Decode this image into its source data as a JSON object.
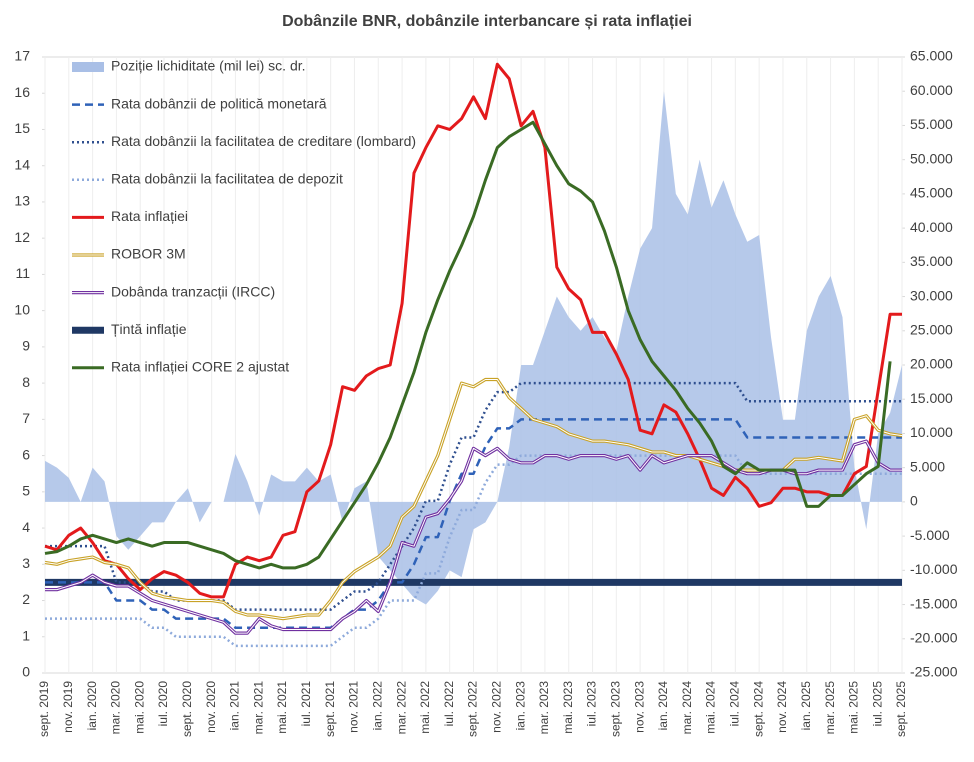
{
  "chart_data": {
    "type": "line",
    "title": "Dobânzile  BNR, dobânzile  interbancare  și rata inflației",
    "categories": [
      "sept. 2019",
      null,
      "nov. 2019",
      null,
      "ian. 2020",
      null,
      "mar. 2020",
      null,
      "mai. 2020",
      null,
      "iul. 2020",
      null,
      "sept. 2020",
      null,
      "nov. 2020",
      null,
      "ian. 2021",
      null,
      "mar. 2021",
      null,
      "mai. 2021",
      null,
      "iul. 2021",
      null,
      "sept. 2021",
      null,
      "nov. 2021",
      null,
      "ian. 2022",
      null,
      "mar. 2022",
      null,
      "mai. 2022",
      null,
      "iul. 2022",
      null,
      "sept. 2022",
      null,
      "nov. 2022",
      null,
      "ian. 2023",
      null,
      "mar. 2023",
      null,
      "mai. 2023",
      null,
      "iul. 2023",
      null,
      "sept. 2023",
      null,
      "nov. 2023",
      null,
      "ian. 2024",
      null,
      "mar. 2024",
      null,
      "mai. 2024",
      null,
      "iul. 2024",
      null,
      "sept. 2024",
      null,
      "nov. 2024",
      null,
      "ian. 2025",
      null,
      "mar. 2025",
      null,
      "mai. 2025",
      null,
      "iul. 2025",
      null,
      "sept. 2025"
    ],
    "ylim": [
      0,
      17
    ],
    "yticks": [
      0,
      1,
      2,
      3,
      4,
      5,
      6,
      7,
      8,
      9,
      10,
      11,
      12,
      13,
      14,
      15,
      16,
      17
    ],
    "y2lim": [
      -25000,
      65000
    ],
    "y2ticks": [
      {
        "value": -25000,
        "label": "-25.000"
      },
      {
        "value": -20000,
        "label": "-20.000"
      },
      {
        "value": -15000,
        "label": "-15.000"
      },
      {
        "value": -10000,
        "label": "-10.000"
      },
      {
        "value": -5000,
        "label": "-5.000"
      },
      0,
      {
        "value": 5000,
        "label": "5.000"
      },
      {
        "value": 10000,
        "label": "10.000"
      },
      {
        "value": 15000,
        "label": "15.000"
      },
      {
        "value": 20000,
        "label": "20.000"
      },
      {
        "value": 25000,
        "label": "25.000"
      },
      {
        "value": 30000,
        "label": "30.000"
      },
      {
        "value": 35000,
        "label": "35.000"
      },
      {
        "value": 40000,
        "label": "40.000"
      },
      {
        "value": 45000,
        "label": "45.000"
      },
      {
        "value": 50000,
        "label": "50.000"
      },
      {
        "value": 55000,
        "label": "55.000"
      },
      {
        "value": 60000,
        "label": "60.000"
      },
      {
        "value": 65000,
        "label": "65.000"
      }
    ],
    "legend": "upper left",
    "series": [
      {
        "name": "Poziție lichiditate (mil lei) sc. dr.",
        "type": "area",
        "axis": "y2",
        "color": "#a9bfe6",
        "values": [
          6000,
          5000,
          3500,
          0,
          5000,
          3000,
          -5000,
          -7000,
          -5000,
          -3000,
          -3000,
          0,
          2000,
          -3000,
          0,
          0,
          7000,
          3000,
          -2000,
          4000,
          3000,
          3000,
          5000,
          3000,
          4000,
          -3000,
          2000,
          3000,
          -8000,
          -10000,
          -12000,
          -14000,
          -15000,
          -13000,
          -10000,
          -11000,
          -4000,
          -3000,
          0,
          8000,
          20000,
          20000,
          25000,
          30000,
          27000,
          25000,
          27000,
          24000,
          22000,
          30000,
          37000,
          40000,
          60000,
          45000,
          42000,
          50000,
          43000,
          47000,
          42000,
          38000,
          39000,
          24000,
          12000,
          12000,
          25000,
          30000,
          33000,
          27000,
          5000,
          -4000,
          10000,
          13000,
          20000
        ]
      },
      {
        "name": "Rata dobânzii de politică monetară",
        "type": "line",
        "style": "dashed",
        "color": "#2f62b8",
        "values": [
          2.5,
          2.5,
          2.5,
          2.5,
          2.5,
          2.5,
          2.0,
          2.0,
          2.0,
          1.75,
          1.75,
          1.5,
          1.5,
          1.5,
          1.5,
          1.5,
          1.25,
          1.25,
          1.25,
          1.25,
          1.25,
          1.25,
          1.25,
          1.25,
          1.25,
          1.5,
          1.75,
          1.75,
          2.0,
          2.5,
          2.5,
          3.0,
          3.75,
          3.75,
          4.75,
          5.5,
          5.5,
          6.25,
          6.75,
          6.75,
          7.0,
          7.0,
          7.0,
          7.0,
          7.0,
          7.0,
          7.0,
          7.0,
          7.0,
          7.0,
          7.0,
          7.0,
          7.0,
          7.0,
          7.0,
          7.0,
          7.0,
          7.0,
          7.0,
          6.5,
          6.5,
          6.5,
          6.5,
          6.5,
          6.5,
          6.5,
          6.5,
          6.5,
          6.5,
          6.5,
          6.5,
          6.5,
          6.5
        ]
      },
      {
        "name": "Rata dobânzii la facilitatea de creditare (lombard)",
        "type": "line",
        "style": "dotted",
        "color": "#2f4f8f",
        "values": [
          3.5,
          3.5,
          3.5,
          3.5,
          3.5,
          3.5,
          2.5,
          2.5,
          2.5,
          2.25,
          2.25,
          2.0,
          2.0,
          2.0,
          2.0,
          2.0,
          1.75,
          1.75,
          1.75,
          1.75,
          1.75,
          1.75,
          1.75,
          1.75,
          1.75,
          2.0,
          2.25,
          2.25,
          2.5,
          3.0,
          3.5,
          4.0,
          4.75,
          4.75,
          5.75,
          6.5,
          6.5,
          7.25,
          7.75,
          7.75,
          8.0,
          8.0,
          8.0,
          8.0,
          8.0,
          8.0,
          8.0,
          8.0,
          8.0,
          8.0,
          8.0,
          8.0,
          8.0,
          8.0,
          8.0,
          8.0,
          8.0,
          8.0,
          8.0,
          7.5,
          7.5,
          7.5,
          7.5,
          7.5,
          7.5,
          7.5,
          7.5,
          7.5,
          7.5,
          7.5,
          7.5,
          7.5,
          7.5
        ]
      },
      {
        "name": "Rata dobânzii la facilitatea de depozit",
        "type": "line",
        "style": "dotted",
        "color": "#8eaadb",
        "values": [
          1.5,
          1.5,
          1.5,
          1.5,
          1.5,
          1.5,
          1.5,
          1.5,
          1.5,
          1.25,
          1.25,
          1.0,
          1.0,
          1.0,
          1.0,
          1.0,
          0.75,
          0.75,
          0.75,
          0.75,
          0.75,
          0.75,
          0.75,
          0.75,
          0.75,
          1.0,
          1.25,
          1.25,
          1.5,
          2.0,
          2.0,
          2.0,
          2.75,
          2.75,
          3.75,
          4.5,
          4.5,
          5.25,
          5.75,
          5.75,
          6.0,
          6.0,
          6.0,
          6.0,
          6.0,
          6.0,
          6.0,
          6.0,
          6.0,
          6.0,
          6.0,
          6.0,
          6.0,
          6.0,
          6.0,
          6.0,
          6.0,
          6.0,
          6.0,
          5.5,
          5.5,
          5.5,
          5.5,
          5.5,
          5.5,
          5.5,
          5.5,
          5.5,
          5.5,
          5.5,
          5.5,
          5.5,
          5.5
        ]
      },
      {
        "name": "Rata inflației",
        "type": "line",
        "style": "thick",
        "color": "#e31a1c",
        "values": [
          3.5,
          3.4,
          3.8,
          4.0,
          3.6,
          3.1,
          3.0,
          2.6,
          2.3,
          2.6,
          2.8,
          2.7,
          2.5,
          2.2,
          2.1,
          2.1,
          3.0,
          3.2,
          3.1,
          3.2,
          3.8,
          3.9,
          5.0,
          5.3,
          6.3,
          7.9,
          7.8,
          8.2,
          8.4,
          8.5,
          10.2,
          13.8,
          14.5,
          15.1,
          15.0,
          15.3,
          15.9,
          15.3,
          16.8,
          16.4,
          15.1,
          15.5,
          14.5,
          11.2,
          10.6,
          10.3,
          9.4,
          9.4,
          8.8,
          8.1,
          6.7,
          6.6,
          7.4,
          7.2,
          6.6,
          5.9,
          5.1,
          4.9,
          5.4,
          5.1,
          4.6,
          4.7,
          5.1,
          5.1,
          5.0,
          5.0,
          4.9,
          4.9,
          5.5,
          5.7,
          7.8,
          9.9,
          9.9
        ]
      },
      {
        "name": "ROBOR 3M",
        "type": "line",
        "style": "double",
        "color": "#c9a227",
        "values": [
          3.05,
          3.0,
          3.1,
          3.15,
          3.2,
          3.05,
          3.0,
          2.9,
          2.5,
          2.2,
          2.1,
          2.05,
          2.0,
          2.0,
          2.0,
          1.95,
          1.7,
          1.6,
          1.6,
          1.55,
          1.5,
          1.55,
          1.6,
          1.6,
          2.0,
          2.5,
          2.8,
          3.0,
          3.2,
          3.5,
          4.3,
          4.6,
          5.3,
          6.0,
          7.0,
          8.0,
          7.9,
          8.1,
          8.1,
          7.6,
          7.3,
          7.0,
          6.9,
          6.8,
          6.6,
          6.5,
          6.4,
          6.4,
          6.35,
          6.3,
          6.2,
          6.1,
          6.1,
          6.0,
          6.0,
          5.9,
          5.8,
          5.7,
          5.6,
          5.6,
          5.6,
          5.6,
          5.6,
          5.9,
          5.9,
          5.95,
          5.9,
          5.85,
          7.0,
          7.1,
          6.7,
          6.6,
          6.55
        ]
      },
      {
        "name": "Dobânda tranzacții (IRCC)",
        "type": "line",
        "style": "double",
        "color": "#7030a0",
        "values": [
          2.3,
          2.3,
          2.4,
          2.5,
          2.7,
          2.5,
          2.4,
          2.4,
          2.2,
          2.0,
          1.9,
          1.8,
          1.7,
          1.6,
          1.5,
          1.4,
          1.1,
          1.1,
          1.5,
          1.3,
          1.2,
          1.2,
          1.2,
          1.2,
          1.2,
          1.5,
          1.7,
          2.0,
          1.7,
          2.5,
          3.6,
          3.5,
          4.3,
          4.4,
          4.8,
          5.3,
          6.2,
          6.0,
          6.2,
          5.9,
          5.8,
          5.8,
          6.0,
          6.0,
          5.9,
          6.0,
          6.0,
          6.0,
          5.9,
          6.0,
          5.6,
          6.0,
          5.8,
          5.9,
          6.0,
          6.0,
          6.0,
          5.8,
          5.6,
          5.5,
          5.5,
          5.6,
          5.6,
          5.5,
          5.5,
          5.6,
          5.6,
          5.6,
          6.3,
          6.4,
          5.8,
          5.6,
          5.6
        ]
      },
      {
        "name": "Țintă inflație",
        "type": "hline",
        "color": "#1f3864",
        "value": 2.5
      },
      {
        "name": "Rata inflației CORE 2 ajustat",
        "type": "line",
        "style": "thick",
        "color": "#3a6b24",
        "values": [
          3.3,
          3.35,
          3.5,
          3.7,
          3.8,
          3.7,
          3.6,
          3.7,
          3.6,
          3.5,
          3.6,
          3.6,
          3.6,
          3.5,
          3.4,
          3.3,
          3.1,
          3.0,
          2.9,
          3.0,
          2.9,
          2.9,
          3.0,
          3.2,
          3.7,
          4.2,
          4.7,
          5.2,
          5.8,
          6.5,
          7.4,
          8.3,
          9.4,
          10.3,
          11.1,
          11.8,
          12.6,
          13.6,
          14.5,
          14.8,
          15.0,
          15.2,
          14.6,
          14.0,
          13.5,
          13.3,
          13.0,
          12.2,
          11.2,
          10.0,
          9.2,
          8.6,
          8.2,
          7.8,
          7.3,
          6.9,
          6.4,
          5.7,
          5.5,
          5.8,
          5.6,
          5.6,
          5.6,
          5.6,
          4.6,
          4.6,
          4.9,
          4.9,
          5.2,
          5.5,
          5.7,
          8.6,
          null
        ]
      }
    ]
  }
}
